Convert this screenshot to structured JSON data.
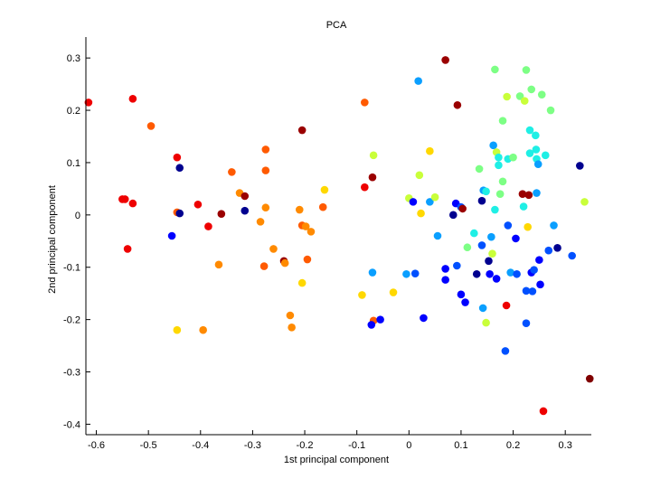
{
  "chart_data": {
    "type": "scatter",
    "title": "PCA",
    "xlabel": "1st principal component",
    "ylabel": "2nd principal component",
    "xlim": [
      -0.62,
      0.35
    ],
    "ylim": [
      -0.42,
      0.34
    ],
    "xticks": [
      -0.6,
      -0.5,
      -0.4,
      -0.3,
      -0.2,
      -0.1,
      0,
      0.1,
      0.2,
      0.3
    ],
    "xtick_labels": [
      "-0.6",
      "-0.5",
      "-0.4",
      "-0.3",
      "-0.2",
      "-0.1",
      "0",
      "0.1",
      "0.2",
      "0.3"
    ],
    "yticks": [
      -0.4,
      -0.3,
      -0.2,
      -0.1,
      0,
      0.1,
      0.2,
      0.3
    ],
    "ytick_labels": [
      "-0.4",
      "-0.3",
      "-0.2",
      "-0.1",
      "0",
      "0.1",
      "0.2",
      "0.3"
    ],
    "grid": false,
    "legend": "none",
    "colors": {
      "darkblue": "#00008f",
      "blue": "#0000ff",
      "midblue": "#0050ff",
      "lightblue": "#0a9fff",
      "cyan": "#1fefe5",
      "green": "#7dff85",
      "yellowgreen": "#c9ff3a",
      "yellow": "#ffd800",
      "orange": "#ff8a00",
      "darkorange": "#ff5a00",
      "red": "#ee0000",
      "darkred": "#9a0000",
      "maroon": "#800000"
    },
    "points": [
      {
        "x": -0.615,
        "y": 0.215,
        "c": "red"
      },
      {
        "x": -0.53,
        "y": 0.222,
        "c": "red"
      },
      {
        "x": -0.495,
        "y": 0.17,
        "c": "darkorange"
      },
      {
        "x": -0.55,
        "y": 0.03,
        "c": "red"
      },
      {
        "x": -0.545,
        "y": 0.03,
        "c": "red"
      },
      {
        "x": -0.53,
        "y": 0.022,
        "c": "red"
      },
      {
        "x": -0.54,
        "y": -0.065,
        "c": "red"
      },
      {
        "x": -0.455,
        "y": -0.04,
        "c": "blue"
      },
      {
        "x": -0.445,
        "y": 0.11,
        "c": "red"
      },
      {
        "x": -0.44,
        "y": 0.09,
        "c": "darkblue"
      },
      {
        "x": -0.445,
        "y": 0.005,
        "c": "darkorange"
      },
      {
        "x": -0.44,
        "y": 0.003,
        "c": "darkblue"
      },
      {
        "x": -0.445,
        "y": -0.22,
        "c": "yellow"
      },
      {
        "x": -0.395,
        "y": -0.22,
        "c": "orange"
      },
      {
        "x": -0.405,
        "y": 0.02,
        "c": "red"
      },
      {
        "x": -0.385,
        "y": -0.022,
        "c": "red"
      },
      {
        "x": -0.365,
        "y": -0.095,
        "c": "orange"
      },
      {
        "x": -0.36,
        "y": 0.002,
        "c": "darkred"
      },
      {
        "x": -0.34,
        "y": 0.082,
        "c": "darkorange"
      },
      {
        "x": -0.325,
        "y": 0.042,
        "c": "orange"
      },
      {
        "x": -0.315,
        "y": 0.036,
        "c": "darkred"
      },
      {
        "x": -0.315,
        "y": 0.008,
        "c": "darkblue"
      },
      {
        "x": -0.285,
        "y": -0.013,
        "c": "orange"
      },
      {
        "x": -0.275,
        "y": 0.125,
        "c": "darkorange"
      },
      {
        "x": -0.275,
        "y": 0.085,
        "c": "darkorange"
      },
      {
        "x": -0.275,
        "y": 0.014,
        "c": "orange"
      },
      {
        "x": -0.278,
        "y": -0.098,
        "c": "darkorange"
      },
      {
        "x": -0.26,
        "y": -0.065,
        "c": "orange"
      },
      {
        "x": -0.24,
        "y": -0.088,
        "c": "darkred"
      },
      {
        "x": -0.238,
        "y": -0.092,
        "c": "orange"
      },
      {
        "x": -0.228,
        "y": -0.192,
        "c": "orange"
      },
      {
        "x": -0.225,
        "y": -0.215,
        "c": "orange"
      },
      {
        "x": -0.21,
        "y": 0.01,
        "c": "orange"
      },
      {
        "x": -0.205,
        "y": 0.162,
        "c": "darkred"
      },
      {
        "x": -0.205,
        "y": -0.02,
        "c": "darkorange"
      },
      {
        "x": -0.198,
        "y": -0.022,
        "c": "orange"
      },
      {
        "x": -0.195,
        "y": -0.085,
        "c": "darkorange"
      },
      {
        "x": -0.205,
        "y": -0.13,
        "c": "yellow"
      },
      {
        "x": -0.188,
        "y": -0.032,
        "c": "orange"
      },
      {
        "x": -0.165,
        "y": 0.015,
        "c": "darkorange"
      },
      {
        "x": -0.162,
        "y": 0.048,
        "c": "yellow"
      },
      {
        "x": -0.085,
        "y": 0.215,
        "c": "darkorange"
      },
      {
        "x": -0.085,
        "y": 0.053,
        "c": "red"
      },
      {
        "x": -0.09,
        "y": -0.153,
        "c": "yellow"
      },
      {
        "x": -0.07,
        "y": 0.072,
        "c": "darkred"
      },
      {
        "x": -0.068,
        "y": 0.114,
        "c": "yellowgreen"
      },
      {
        "x": -0.07,
        "y": -0.11,
        "c": "lightblue"
      },
      {
        "x": -0.068,
        "y": -0.202,
        "c": "darkorange"
      },
      {
        "x": -0.072,
        "y": -0.21,
        "c": "blue"
      },
      {
        "x": -0.055,
        "y": -0.2,
        "c": "blue"
      },
      {
        "x": -0.03,
        "y": -0.148,
        "c": "yellow"
      },
      {
        "x": -0.005,
        "y": -0.113,
        "c": "lightblue"
      },
      {
        "x": 0.0,
        "y": 0.032,
        "c": "yellowgreen"
      },
      {
        "x": 0.008,
        "y": 0.025,
        "c": "blue"
      },
      {
        "x": 0.012,
        "y": -0.112,
        "c": "midblue"
      },
      {
        "x": 0.018,
        "y": 0.256,
        "c": "lightblue"
      },
      {
        "x": 0.02,
        "y": 0.076,
        "c": "yellowgreen"
      },
      {
        "x": 0.023,
        "y": 0.003,
        "c": "yellow"
      },
      {
        "x": 0.028,
        "y": -0.197,
        "c": "blue"
      },
      {
        "x": 0.04,
        "y": 0.122,
        "c": "yellow"
      },
      {
        "x": 0.04,
        "y": 0.025,
        "c": "lightblue"
      },
      {
        "x": 0.05,
        "y": 0.034,
        "c": "yellowgreen"
      },
      {
        "x": 0.055,
        "y": -0.04,
        "c": "lightblue"
      },
      {
        "x": 0.07,
        "y": 0.296,
        "c": "darkred"
      },
      {
        "x": 0.07,
        "y": -0.103,
        "c": "blue"
      },
      {
        "x": 0.07,
        "y": -0.124,
        "c": "blue"
      },
      {
        "x": 0.085,
        "y": 0.0,
        "c": "darkblue"
      },
      {
        "x": 0.09,
        "y": 0.022,
        "c": "blue"
      },
      {
        "x": 0.092,
        "y": -0.097,
        "c": "midblue"
      },
      {
        "x": 0.093,
        "y": 0.21,
        "c": "darkred"
      },
      {
        "x": 0.1,
        "y": 0.015,
        "c": "midblue"
      },
      {
        "x": 0.103,
        "y": 0.012,
        "c": "darkred"
      },
      {
        "x": 0.1,
        "y": -0.152,
        "c": "blue"
      },
      {
        "x": 0.108,
        "y": -0.167,
        "c": "blue"
      },
      {
        "x": 0.112,
        "y": -0.062,
        "c": "green"
      },
      {
        "x": 0.125,
        "y": -0.035,
        "c": "cyan"
      },
      {
        "x": 0.13,
        "y": -0.113,
        "c": "darkblue"
      },
      {
        "x": 0.135,
        "y": 0.088,
        "c": "green"
      },
      {
        "x": 0.14,
        "y": 0.027,
        "c": "darkblue"
      },
      {
        "x": 0.14,
        "y": -0.058,
        "c": "midblue"
      },
      {
        "x": 0.143,
        "y": 0.047,
        "c": "lightblue"
      },
      {
        "x": 0.148,
        "y": 0.045,
        "c": "cyan"
      },
      {
        "x": 0.142,
        "y": -0.178,
        "c": "lightblue"
      },
      {
        "x": 0.148,
        "y": -0.206,
        "c": "yellowgreen"
      },
      {
        "x": 0.153,
        "y": -0.088,
        "c": "darkblue"
      },
      {
        "x": 0.158,
        "y": -0.042,
        "c": "lightblue"
      },
      {
        "x": 0.155,
        "y": -0.113,
        "c": "blue"
      },
      {
        "x": 0.16,
        "y": -0.074,
        "c": "yellowgreen"
      },
      {
        "x": 0.162,
        "y": 0.133,
        "c": "lightblue"
      },
      {
        "x": 0.165,
        "y": 0.278,
        "c": "green"
      },
      {
        "x": 0.168,
        "y": 0.12,
        "c": "yellowgreen"
      },
      {
        "x": 0.165,
        "y": 0.01,
        "c": "cyan"
      },
      {
        "x": 0.168,
        "y": -0.122,
        "c": "blue"
      },
      {
        "x": 0.172,
        "y": 0.11,
        "c": "cyan"
      },
      {
        "x": 0.172,
        "y": 0.095,
        "c": "cyan"
      },
      {
        "x": 0.175,
        "y": 0.04,
        "c": "green"
      },
      {
        "x": 0.18,
        "y": 0.18,
        "c": "green"
      },
      {
        "x": 0.18,
        "y": 0.064,
        "c": "green"
      },
      {
        "x": 0.185,
        "y": -0.26,
        "c": "midblue"
      },
      {
        "x": 0.187,
        "y": -0.173,
        "c": "red"
      },
      {
        "x": 0.188,
        "y": 0.226,
        "c": "yellowgreen"
      },
      {
        "x": 0.19,
        "y": 0.107,
        "c": "cyan"
      },
      {
        "x": 0.19,
        "y": -0.02,
        "c": "midblue"
      },
      {
        "x": 0.195,
        "y": -0.11,
        "c": "lightblue"
      },
      {
        "x": 0.2,
        "y": 0.11,
        "c": "green"
      },
      {
        "x": 0.205,
        "y": -0.045,
        "c": "blue"
      },
      {
        "x": 0.207,
        "y": -0.113,
        "c": "midblue"
      },
      {
        "x": 0.213,
        "y": 0.227,
        "c": "green"
      },
      {
        "x": 0.218,
        "y": 0.04,
        "c": "darkred"
      },
      {
        "x": 0.22,
        "y": 0.016,
        "c": "cyan"
      },
      {
        "x": 0.222,
        "y": 0.218,
        "c": "yellowgreen"
      },
      {
        "x": 0.225,
        "y": 0.277,
        "c": "green"
      },
      {
        "x": 0.225,
        "y": -0.145,
        "c": "midblue"
      },
      {
        "x": 0.225,
        "y": -0.207,
        "c": "midblue"
      },
      {
        "x": 0.228,
        "y": -0.023,
        "c": "yellow"
      },
      {
        "x": 0.23,
        "y": 0.038,
        "c": "darkred"
      },
      {
        "x": 0.232,
        "y": 0.162,
        "c": "cyan"
      },
      {
        "x": 0.232,
        "y": 0.118,
        "c": "cyan"
      },
      {
        "x": 0.235,
        "y": 0.24,
        "c": "green"
      },
      {
        "x": 0.235,
        "y": -0.11,
        "c": "blue"
      },
      {
        "x": 0.237,
        "y": -0.146,
        "c": "midblue"
      },
      {
        "x": 0.24,
        "y": -0.105,
        "c": "midblue"
      },
      {
        "x": 0.243,
        "y": 0.152,
        "c": "cyan"
      },
      {
        "x": 0.244,
        "y": 0.125,
        "c": "cyan"
      },
      {
        "x": 0.245,
        "y": 0.107,
        "c": "cyan"
      },
      {
        "x": 0.245,
        "y": 0.042,
        "c": "lightblue"
      },
      {
        "x": 0.248,
        "y": 0.097,
        "c": "lightblue"
      },
      {
        "x": 0.25,
        "y": -0.086,
        "c": "blue"
      },
      {
        "x": 0.252,
        "y": -0.133,
        "c": "blue"
      },
      {
        "x": 0.255,
        "y": 0.23,
        "c": "green"
      },
      {
        "x": 0.258,
        "y": -0.375,
        "c": "red"
      },
      {
        "x": 0.262,
        "y": 0.114,
        "c": "cyan"
      },
      {
        "x": 0.268,
        "y": -0.068,
        "c": "midblue"
      },
      {
        "x": 0.272,
        "y": 0.2,
        "c": "green"
      },
      {
        "x": 0.278,
        "y": -0.02,
        "c": "lightblue"
      },
      {
        "x": 0.285,
        "y": -0.063,
        "c": "darkblue"
      },
      {
        "x": 0.313,
        "y": -0.078,
        "c": "midblue"
      },
      {
        "x": 0.328,
        "y": 0.094,
        "c": "darkblue"
      },
      {
        "x": 0.337,
        "y": 0.025,
        "c": "yellowgreen"
      },
      {
        "x": 0.347,
        "y": -0.313,
        "c": "maroon"
      }
    ]
  }
}
